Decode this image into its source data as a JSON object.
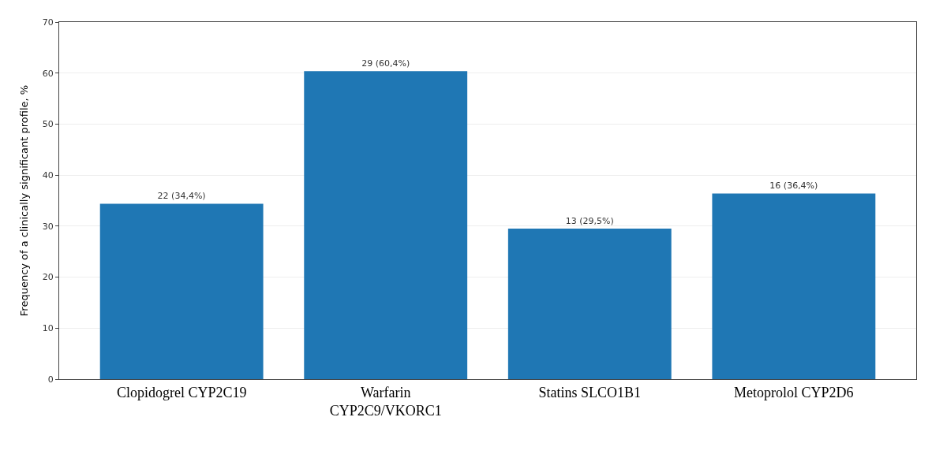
{
  "chart_data": {
    "type": "bar",
    "ylabel": "Frequency of a clinically significant profile, %",
    "categories": [
      "Clopidogrel CYP2C19",
      "Warfarin\nCYP2C9/VKORC1",
      "Statins SLCO1B1",
      "Metoprolol CYP2D6"
    ],
    "values": [
      34.4,
      60.4,
      29.5,
      36.4
    ],
    "value_labels": [
      "22 (34,4%)",
      "29 (60,4%)",
      "13 (29,5%)",
      "16 (36,4%)"
    ],
    "color": "#1f77b4",
    "ylim": [
      0,
      70
    ],
    "yticks": [
      0,
      10,
      20,
      30,
      40,
      50,
      60,
      70
    ],
    "grid": "y"
  }
}
